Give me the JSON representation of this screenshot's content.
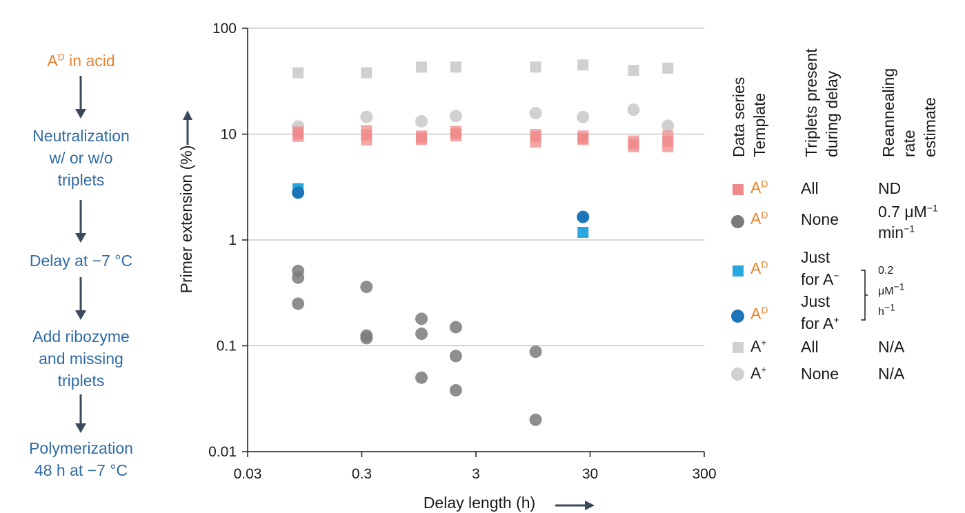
{
  "flow_steps": [
    {
      "base": "A",
      "sup": "D",
      "rest": " in acid"
    },
    {
      "text": "Neutralization\nw/ or w/o\ntriplets"
    },
    {
      "text": "Delay at −7 °C"
    },
    {
      "text": "Add ribozyme\nand missing\ntriplets"
    },
    {
      "text": "Polymerization\n48 h at −7 °C"
    }
  ],
  "legend": {
    "headers": [
      "Data series\nTemplate",
      "Triplets present\nduring delay",
      "Reannealing\nrate estimate"
    ],
    "rows": [
      {
        "marker": "square",
        "color": "#f08a8a",
        "template_base": "A",
        "template_sup": "D",
        "triplets": "All",
        "rate": "ND"
      },
      {
        "marker": "circle",
        "color": "#7a7a7a",
        "template_base": "A",
        "template_sup": "D",
        "triplets": "None",
        "rate_l1": "0.7 μM",
        "rate_l1_sup": "−1",
        "rate_l2": "min",
        "rate_l2_sup": "−1"
      },
      {
        "marker": "square",
        "color": "#29a8e0",
        "template_base": "A",
        "template_sup": "D",
        "triplets_l1": "Just",
        "triplets_l2": "for A",
        "triplets_sup": "−"
      },
      {
        "marker": "circle",
        "color": "#1b75b8",
        "template_base": "A",
        "template_sup": "D",
        "triplets_l1": "Just",
        "triplets_l2": "for A",
        "triplets_sup": "+"
      },
      {
        "marker": "square",
        "color": "#d0d0d0",
        "template_base": "A",
        "template_sup": "+",
        "triplets": "All",
        "rate": "N/A"
      },
      {
        "marker": "circle",
        "color": "#d0d0d0",
        "template_base": "A",
        "template_sup": "+",
        "triplets": "None",
        "rate": "N/A"
      }
    ],
    "shared_rate_l1": "0.2",
    "shared_rate_l2": "μM",
    "shared_rate_l2_sup": "−1",
    "shared_rate_l3": "h",
    "shared_rate_l3_sup": "−1"
  },
  "chart_data": {
    "type": "scatter",
    "xlabel": "Delay length (h)",
    "ylabel": "Primer extension (%)",
    "x_scale": "log",
    "y_scale": "log",
    "xlim": [
      0.03,
      300
    ],
    "ylim": [
      0.01,
      100
    ],
    "x_ticks": [
      0.03,
      0.3,
      3,
      30,
      300
    ],
    "x_tick_labels": [
      "0.03",
      "0.3",
      "3",
      "30",
      "300"
    ],
    "y_ticks": [
      0.01,
      0.1,
      1,
      10,
      100
    ],
    "y_tick_labels": [
      "0.01",
      "0.1",
      "1",
      "10",
      "100"
    ],
    "grid": "horizontal",
    "series": [
      {
        "key": "AD_all",
        "marker": "square",
        "color": "#f08a8a",
        "opacity": 0.75,
        "points": [
          [
            0.083,
            9.5
          ],
          [
            0.083,
            10.5
          ],
          [
            0.083,
            10
          ],
          [
            0.33,
            8.8
          ],
          [
            0.33,
            9.8
          ],
          [
            0.33,
            10.8
          ],
          [
            1.0,
            8.9
          ],
          [
            1.0,
            9.6
          ],
          [
            1.0,
            9.2
          ],
          [
            2.0,
            9.6
          ],
          [
            2.0,
            10.6
          ],
          [
            2.0,
            10.1
          ],
          [
            10,
            8.4
          ],
          [
            10,
            9.4
          ],
          [
            10,
            9.9
          ],
          [
            26,
            8.9
          ],
          [
            26,
            9.6
          ],
          [
            26,
            9.1
          ],
          [
            72,
            7.6
          ],
          [
            72,
            8.1
          ],
          [
            72,
            8.6
          ],
          [
            144,
            7.6
          ],
          [
            144,
            8.5
          ],
          [
            144,
            9.6
          ]
        ]
      },
      {
        "key": "AD_none",
        "marker": "circle",
        "color": "#7a7a7a",
        "opacity": 0.85,
        "points": [
          [
            0.083,
            0.51
          ],
          [
            0.083,
            0.44
          ],
          [
            0.083,
            0.25
          ],
          [
            0.33,
            0.36
          ],
          [
            0.33,
            0.125
          ],
          [
            0.33,
            0.118
          ],
          [
            1.0,
            0.18
          ],
          [
            1.0,
            0.13
          ],
          [
            1.0,
            0.05
          ],
          [
            2.0,
            0.15
          ],
          [
            2.0,
            0.08
          ],
          [
            2.0,
            0.038
          ],
          [
            10,
            0.088
          ],
          [
            10,
            0.02
          ]
        ]
      },
      {
        "key": "AD_justAminus",
        "marker": "square",
        "color": "#29a8e0",
        "opacity": 1,
        "points": [
          [
            0.083,
            3.05
          ],
          [
            26,
            1.18
          ]
        ]
      },
      {
        "key": "AD_justAplus",
        "marker": "circle",
        "color": "#1b75b8",
        "opacity": 1,
        "points": [
          [
            0.083,
            2.8
          ],
          [
            26,
            1.65
          ]
        ]
      },
      {
        "key": "Aplus_all",
        "marker": "square",
        "color": "#d0d0d0",
        "opacity": 1,
        "points": [
          [
            0.083,
            38
          ],
          [
            0.33,
            38
          ],
          [
            1.0,
            43
          ],
          [
            2.0,
            43
          ],
          [
            10,
            43
          ],
          [
            26,
            45
          ],
          [
            72,
            40
          ],
          [
            144,
            42
          ]
        ]
      },
      {
        "key": "Aplus_none",
        "marker": "circle",
        "color": "#d0d0d0",
        "opacity": 1,
        "points": [
          [
            0.083,
            11.8
          ],
          [
            0.33,
            14.5
          ],
          [
            1.0,
            13.2
          ],
          [
            2.0,
            14.8
          ],
          [
            10,
            15.8
          ],
          [
            26,
            14.5
          ],
          [
            72,
            17
          ],
          [
            144,
            12
          ]
        ]
      }
    ]
  }
}
